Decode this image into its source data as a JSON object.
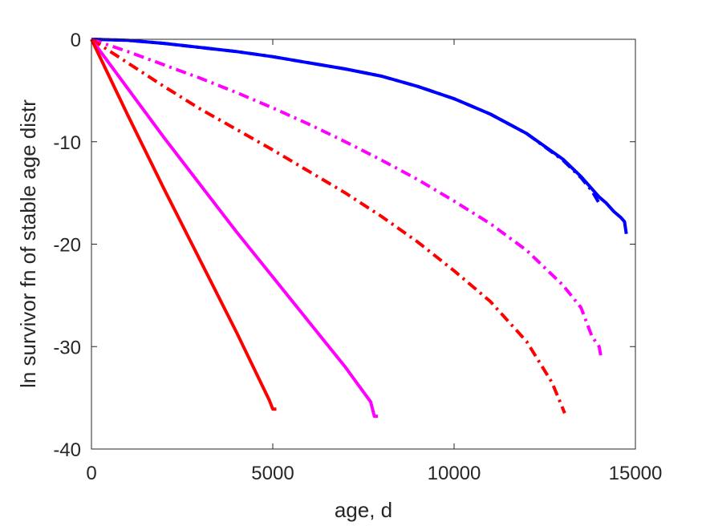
{
  "chart_data": {
    "type": "line",
    "xlabel": "age, d",
    "ylabel": "ln survivor fn of stable age distr",
    "xlim": [
      0,
      15000
    ],
    "ylim": [
      -40,
      0
    ],
    "xticks": [
      0,
      5000,
      10000,
      15000
    ],
    "yticks": [
      0,
      -10,
      -20,
      -30,
      -40
    ],
    "x_tick_labels": [
      "0",
      "5000",
      "10000",
      "15000"
    ],
    "y_tick_labels": [
      "0",
      "-10",
      "-20",
      "-30",
      "-40"
    ],
    "grid": false,
    "legend": "none",
    "series": [
      {
        "color": "#0000ff",
        "style": "solid",
        "x": [
          0,
          1000,
          2000,
          3000,
          4000,
          5000,
          6000,
          7000,
          8000,
          9000,
          10000,
          11000,
          12000,
          13000,
          13500,
          14000,
          14200,
          14400,
          14600,
          14700,
          14750
        ],
        "y": [
          0,
          -0.1,
          -0.4,
          -0.8,
          -1.2,
          -1.7,
          -2.3,
          -2.9,
          -3.6,
          -4.6,
          -5.8,
          -7.3,
          -9.2,
          -11.7,
          -13.4,
          -15.4,
          -16.0,
          -16.8,
          -17.4,
          -17.8,
          -19.0
        ]
      },
      {
        "color": "#0000ff",
        "style": "dashdot",
        "x": [
          0,
          1000,
          2000,
          3000,
          4000,
          5000,
          6000,
          7000,
          8000,
          9000,
          10000,
          11000,
          12000,
          13000,
          13500,
          13800,
          14000,
          14050
        ],
        "y": [
          0,
          -0.1,
          -0.4,
          -0.8,
          -1.2,
          -1.7,
          -2.3,
          -2.9,
          -3.6,
          -4.6,
          -5.8,
          -7.3,
          -9.2,
          -11.8,
          -13.5,
          -14.8,
          -16.0,
          -16.2
        ]
      },
      {
        "color": "#ff00ff",
        "style": "dashdot",
        "x": [
          0,
          1000,
          2000,
          3000,
          4000,
          5000,
          6000,
          7000,
          8000,
          9000,
          10000,
          11000,
          12000,
          13000,
          13500,
          13800,
          14000,
          14050
        ],
        "y": [
          0,
          -1.2,
          -2.5,
          -3.8,
          -5.2,
          -6.7,
          -8.3,
          -10.0,
          -11.8,
          -13.7,
          -15.8,
          -18.0,
          -20.6,
          -24.0,
          -26.2,
          -29.0,
          -30.0,
          -31.0
        ]
      },
      {
        "color": "#ff0000",
        "style": "dashdot",
        "x": [
          0,
          1000,
          2000,
          3000,
          4000,
          5000,
          6000,
          7000,
          8000,
          9000,
          10000,
          11000,
          12000,
          12700,
          13050
        ],
        "y": [
          0,
          -2.3,
          -4.6,
          -6.8,
          -8.8,
          -10.8,
          -12.9,
          -15.0,
          -17.3,
          -19.8,
          -22.6,
          -25.6,
          -29.5,
          -33.5,
          -36.5
        ]
      },
      {
        "color": "#ff00ff",
        "style": "solid",
        "x": [
          0,
          1000,
          2000,
          3000,
          4000,
          5000,
          6000,
          7000,
          7700,
          7800,
          7900
        ],
        "y": [
          0,
          -4.8,
          -9.6,
          -14.2,
          -18.8,
          -23.2,
          -27.6,
          -32.0,
          -35.4,
          -36.8,
          -36.8
        ]
      },
      {
        "color": "#ff0000",
        "style": "solid",
        "x": [
          0,
          1000,
          2000,
          3000,
          4000,
          4900,
          5000,
          5100
        ],
        "y": [
          0,
          -7.4,
          -14.6,
          -21.6,
          -28.6,
          -35.2,
          -36.1,
          -36.1
        ]
      }
    ]
  }
}
